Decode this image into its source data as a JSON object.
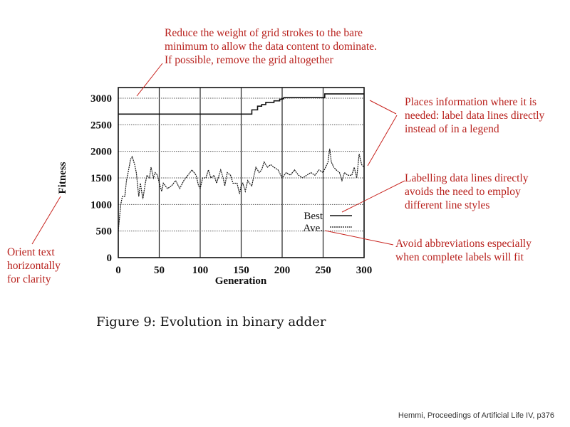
{
  "annotations": {
    "grid": [
      "Reduce the weight of grid strokes to the bare",
      "minimum to allow the data content to dominate.",
      "If possible, remove the grid altogether"
    ],
    "placement": [
      "Places information where it is",
      "needed: label data lines directly",
      "instead of in a legend"
    ],
    "line_styles": [
      "Labelling data lines directly",
      "avoids the need to employ",
      "different line styles"
    ],
    "abbrev": [
      "Avoid abbreviations especially",
      "when complete labels will fit"
    ],
    "orient": [
      "Orient text",
      "horizontally",
      "for clarity"
    ]
  },
  "caption": "Figure 9:  Evolution in binary adder",
  "credit": "Hemmi, Proceedings of Artificial Life IV, p376",
  "colors": {
    "annotation": "#b8201c",
    "ink": "#111111"
  },
  "chart_data": {
    "type": "line",
    "title": "",
    "xlabel": "Generation",
    "ylabel": "Fitness",
    "xlim": [
      0,
      300
    ],
    "ylim": [
      0,
      3200
    ],
    "xticks": [
      "0",
      "50",
      "100",
      "150",
      "200",
      "250",
      "300"
    ],
    "yticks": [
      "0",
      "500",
      "1000",
      "1500",
      "2000",
      "2500",
      "3000"
    ],
    "grid": true,
    "legend_placement": "bottom-right",
    "series": [
      {
        "name": "Best",
        "style": "solid",
        "x": [
          0,
          160,
          163,
          168,
          170,
          175,
          180,
          190,
          197,
          200,
          202,
          250,
          252,
          300
        ],
        "y": [
          2700,
          2700,
          2780,
          2780,
          2850,
          2880,
          2920,
          2950,
          2980,
          2990,
          3010,
          3010,
          3080,
          3080
        ]
      },
      {
        "name": "Ave.",
        "style": "dashed",
        "x": [
          0,
          3,
          5,
          8,
          10,
          12,
          15,
          17,
          20,
          22,
          25,
          27,
          30,
          33,
          35,
          38,
          40,
          43,
          45,
          48,
          50,
          53,
          55,
          60,
          65,
          70,
          75,
          80,
          85,
          90,
          95,
          98,
          100,
          103,
          107,
          110,
          113,
          117,
          120,
          125,
          128,
          130,
          133,
          137,
          140,
          145,
          148,
          150,
          152,
          155,
          158,
          160,
          163,
          165,
          168,
          172,
          175,
          178,
          182,
          186,
          190,
          195,
          200,
          205,
          210,
          215,
          220,
          225,
          230,
          235,
          240,
          245,
          250,
          253,
          256,
          258,
          260,
          263,
          266,
          270,
          273,
          276,
          280,
          285,
          288,
          291,
          294,
          297,
          300
        ],
        "y": [
          500,
          1000,
          1150,
          1150,
          1450,
          1600,
          1850,
          1900,
          1750,
          1600,
          1150,
          1400,
          1100,
          1400,
          1550,
          1500,
          1700,
          1500,
          1600,
          1550,
          1400,
          1250,
          1400,
          1300,
          1350,
          1450,
          1300,
          1450,
          1550,
          1650,
          1550,
          1350,
          1300,
          1500,
          1500,
          1650,
          1500,
          1550,
          1400,
          1650,
          1500,
          1350,
          1600,
          1550,
          1400,
          1400,
          1200,
          1350,
          1400,
          1250,
          1450,
          1400,
          1350,
          1500,
          1700,
          1600,
          1650,
          1800,
          1700,
          1750,
          1700,
          1650,
          1500,
          1600,
          1550,
          1650,
          1550,
          1500,
          1550,
          1600,
          1550,
          1650,
          1600,
          1700,
          1800,
          2050,
          1800,
          1700,
          1650,
          1600,
          1450,
          1600,
          1550,
          1550,
          1700,
          1500,
          1950,
          1750,
          1700
        ]
      }
    ]
  }
}
